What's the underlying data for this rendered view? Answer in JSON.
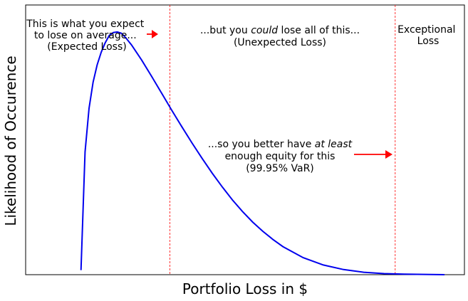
{
  "chart_data": {
    "type": "line",
    "xlabel": "Portfolio Loss in $",
    "ylabel": "Likelihood of Occurence",
    "xlim": [
      0,
      10
    ],
    "ylim": [
      0,
      1.0
    ],
    "grid": false,
    "ticks_visible": false,
    "colors": {
      "curve": "#0000ee",
      "markers": "#ff0000",
      "frame": "#000000"
    },
    "series": [
      {
        "x": [
          1,
          1.1,
          1.2,
          1.3,
          1.4,
          1.5,
          1.6,
          1.7,
          1.8,
          1.9,
          2.0,
          2.1,
          2.25,
          2.5,
          2.75,
          3.0,
          3.25,
          3.5,
          3.75,
          4.0,
          4.25,
          4.5,
          4.75,
          5.0,
          5.25,
          5.5,
          5.75,
          6.0,
          6.5,
          7.0,
          7.5,
          8.0,
          8.5,
          9.0,
          9.5,
          10.0
        ],
        "y": [
          0.017,
          0.455,
          0.617,
          0.714,
          0.778,
          0.825,
          0.86,
          0.887,
          0.898,
          0.9,
          0.895,
          0.88,
          0.852,
          0.796,
          0.735,
          0.672,
          0.609,
          0.548,
          0.488,
          0.431,
          0.376,
          0.325,
          0.277,
          0.234,
          0.195,
          0.161,
          0.131,
          0.104,
          0.063,
          0.036,
          0.019,
          0.009,
          0.004,
          0.002,
          0.001,
          0.0
        ]
      }
    ],
    "markers": [
      {
        "x": 3.2,
        "label": "expected-loss"
      },
      {
        "x": 8.78,
        "label": "var-99.95"
      }
    ],
    "annotations": {
      "expected": [
        "This is what you expect",
        "to lose on average...",
        "(Expected Loss)"
      ],
      "unexpected": {
        "pre": "...but you ",
        "italic": "could",
        "post": " lose all of this...",
        "line2": "(Unexpected Loss)"
      },
      "var": {
        "pre": "...so you better have ",
        "italic": "at least",
        "line2": "enough equity for this",
        "line3": "(99.95% VaR)"
      },
      "exceptional": [
        "Exceptional",
        "Loss"
      ]
    }
  }
}
